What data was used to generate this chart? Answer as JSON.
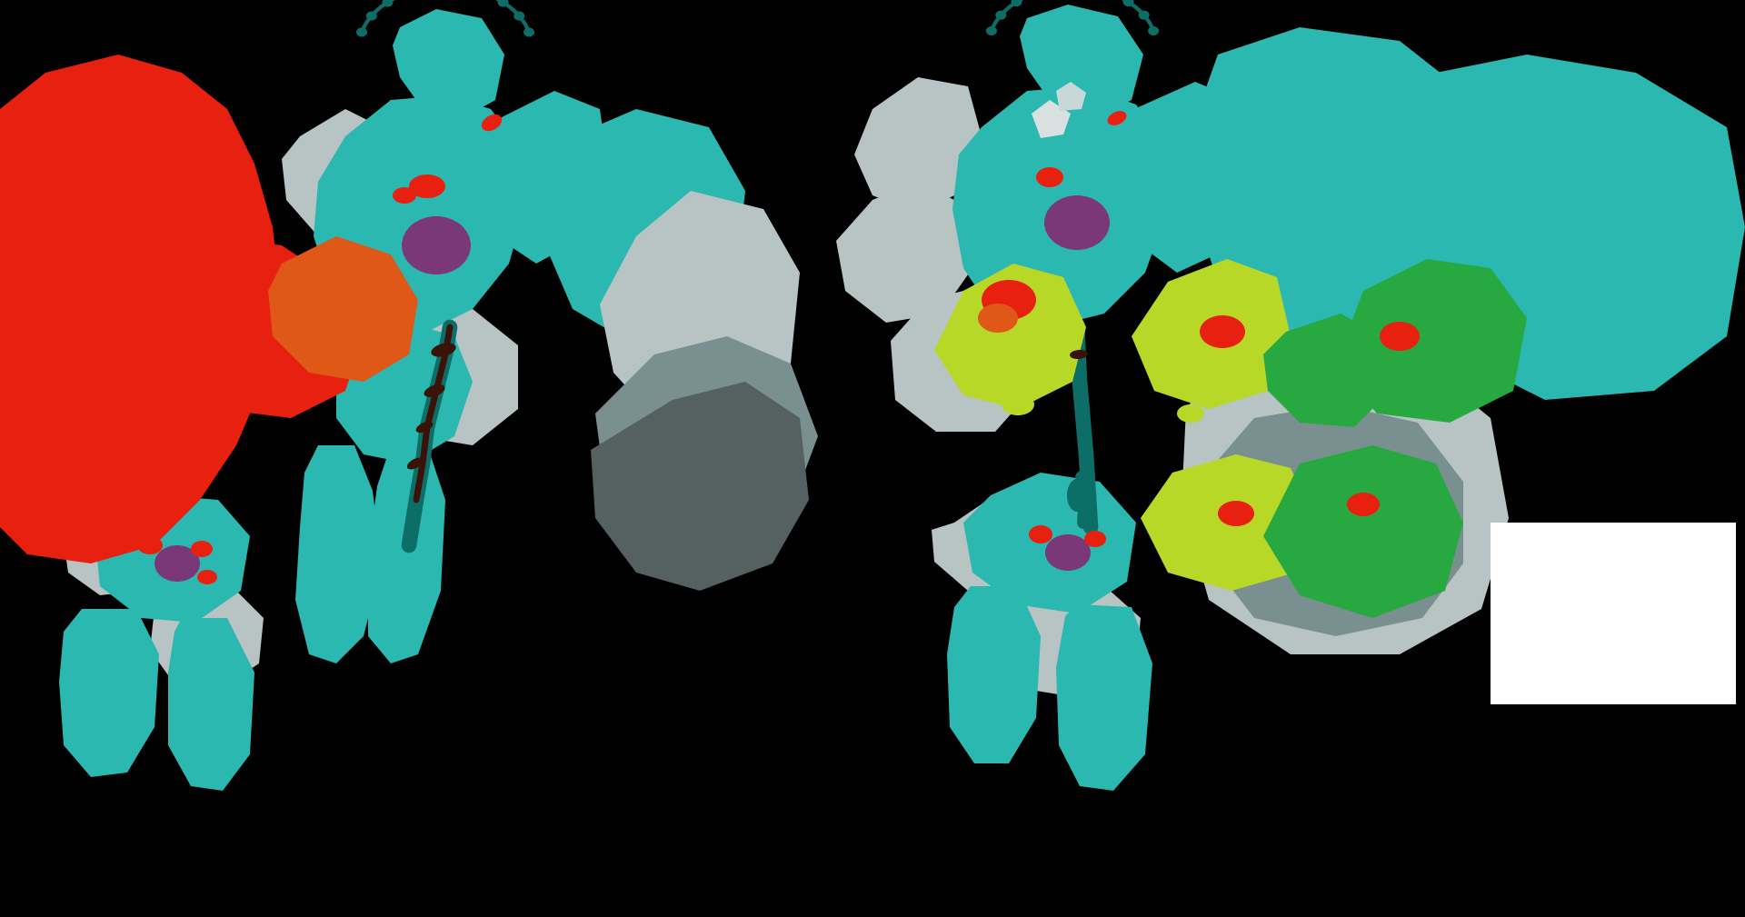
{
  "bg": "#000000",
  "white": "#ffffff",
  "teal": "#2ab8b0",
  "teal2": "#1d9e96",
  "teal_dark": "#0d6e68",
  "teal_light": "#4dcdc6",
  "gray_light": "#b8c4c4",
  "gray_mid": "#7a9090",
  "gray_dark": "#556060",
  "red": "#e82010",
  "orange": "#e05818",
  "purple": "#7a3878",
  "brown": "#3a1208",
  "green": "#28a840",
  "yellow_green": "#b8d828",
  "figure_width": 19.2,
  "figure_height": 10.09
}
